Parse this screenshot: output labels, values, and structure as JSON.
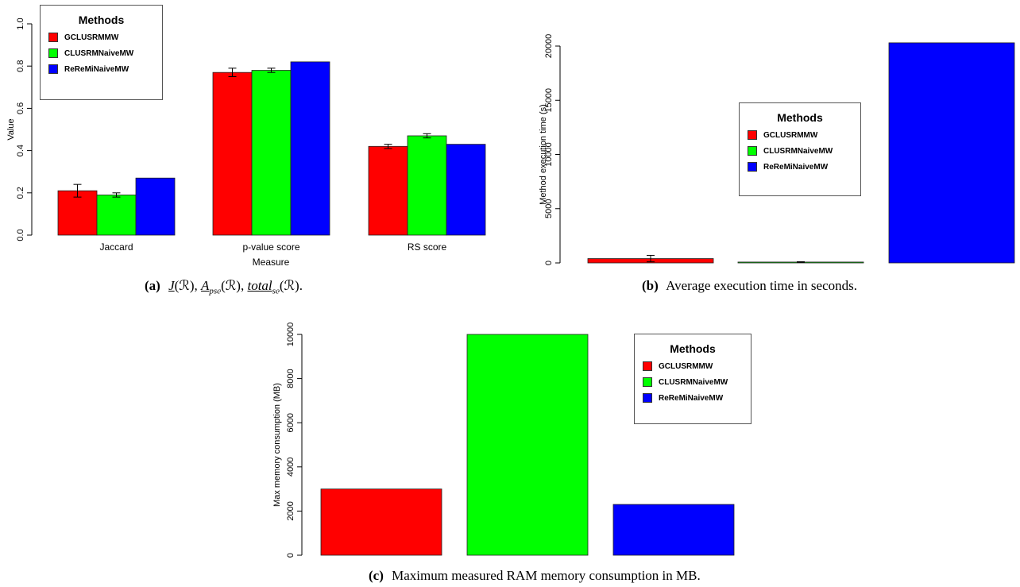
{
  "colors": {
    "GCLUSRMMW": "#ff0000",
    "CLUSRMNaiveMW": "#00ff00",
    "ReReMiNaiveMW": "#0000ff"
  },
  "legend_title": "Methods",
  "methods": [
    "GCLUSRMMW",
    "CLUSRMNaiveMW",
    "ReReMiNaiveMW"
  ],
  "captions": {
    "a": {
      "tag": "(a)",
      "text": "J(ℛ), A_psc(ℛ), total_sc(ℛ)."
    },
    "b": {
      "tag": "(b)",
      "text": "Average execution time in seconds."
    },
    "c": {
      "tag": "(c)",
      "text": "Maximum measured RAM memory consumption in MB."
    }
  },
  "chart_data": [
    {
      "id": "a",
      "type": "bar",
      "categories": [
        "Jaccard",
        "p-value score",
        "RS score"
      ],
      "series": [
        {
          "name": "GCLUSRMMW",
          "values": [
            0.21,
            0.77,
            0.42
          ],
          "errors": [
            0.03,
            0.02,
            0.01
          ]
        },
        {
          "name": "CLUSRMNaiveMW",
          "values": [
            0.19,
            0.78,
            0.47
          ],
          "errors": [
            0.01,
            0.01,
            0.01
          ]
        },
        {
          "name": "ReReMiNaiveMW",
          "values": [
            0.27,
            0.82,
            0.43
          ],
          "errors": [
            0,
            0,
            0
          ]
        }
      ],
      "xlabel": "Measure",
      "ylabel": "Value",
      "ylim": [
        0,
        1.0
      ],
      "yticks": [
        "0.0",
        "0.2",
        "0.4",
        "0.6",
        "0.8",
        "1.0"
      ],
      "legend_position": "top-left"
    },
    {
      "id": "b",
      "type": "bar",
      "categories": [
        "GCLUSRMMW",
        "CLUSRMNaiveMW",
        "ReReMiNaiveMW"
      ],
      "values": [
        400,
        80,
        20300
      ],
      "errors": [
        300,
        30,
        0
      ],
      "ylabel": "Method execution time (s)",
      "ylim": [
        0,
        20000
      ],
      "yticks": [
        "0",
        "5000",
        "10000",
        "15000",
        "20000"
      ],
      "legend_position": "center"
    },
    {
      "id": "c",
      "type": "bar",
      "categories": [
        "GCLUSRMMW",
        "CLUSRMNaiveMW",
        "ReReMiNaiveMW"
      ],
      "values": [
        3000,
        10000,
        2300
      ],
      "ylabel": "Max memory consumption (MB)",
      "ylim": [
        0,
        10000
      ],
      "yticks": [
        "0",
        "2000",
        "4000",
        "6000",
        "8000",
        "10000"
      ],
      "legend_position": "top-right"
    }
  ]
}
